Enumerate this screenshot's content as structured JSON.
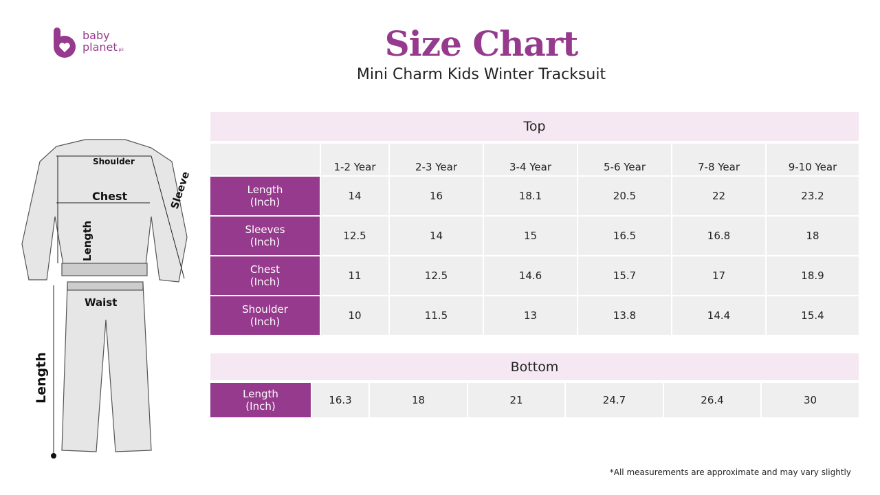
{
  "brand": {
    "line1": "baby",
    "line2": "planet",
    "suffix": ".pk",
    "color": "#953A8C"
  },
  "title": "Size Chart",
  "subtitle": "Mini Charm Kids Winter Tracksuit",
  "illustration": {
    "shoulder": "Shoulder",
    "chest": "Chest",
    "sleeve": "Sleeve",
    "top_length": "Length",
    "waist": "Waist",
    "bottom_length": "Length"
  },
  "top": {
    "heading": "Top",
    "columns": [
      "1-2 Year",
      "2-3 Year",
      "3-4 Year",
      "5-6 Year",
      "7-8 Year",
      "9-10 Year"
    ],
    "rows": [
      {
        "label": "Length",
        "unit": "(Inch)",
        "values": [
          "14",
          "16",
          "18.1",
          "20.5",
          "22",
          "23.2"
        ]
      },
      {
        "label": "Sleeves",
        "unit": "(Inch)",
        "values": [
          "12.5",
          "14",
          "15",
          "16.5",
          "16.8",
          "18"
        ]
      },
      {
        "label": "Chest",
        "unit": "(Inch)",
        "values": [
          "11",
          "12.5",
          "14.6",
          "15.7",
          "17",
          "18.9"
        ]
      },
      {
        "label": "Shoulder",
        "unit": "(Inch)",
        "values": [
          "10",
          "11.5",
          "13",
          "13.8",
          "14.4",
          "15.4"
        ]
      }
    ]
  },
  "bottom": {
    "heading": "Bottom",
    "rows": [
      {
        "label": "Length",
        "unit": "(Inch)",
        "values": [
          "16.3",
          "18",
          "21",
          "24.7",
          "26.4",
          "30"
        ]
      }
    ]
  },
  "footnote": "*All measurements are approximate and may vary slightly",
  "colors": {
    "accent": "#953A8C",
    "header_bg": "#F6E8F2",
    "cell_bg": "#EFEFEF"
  }
}
